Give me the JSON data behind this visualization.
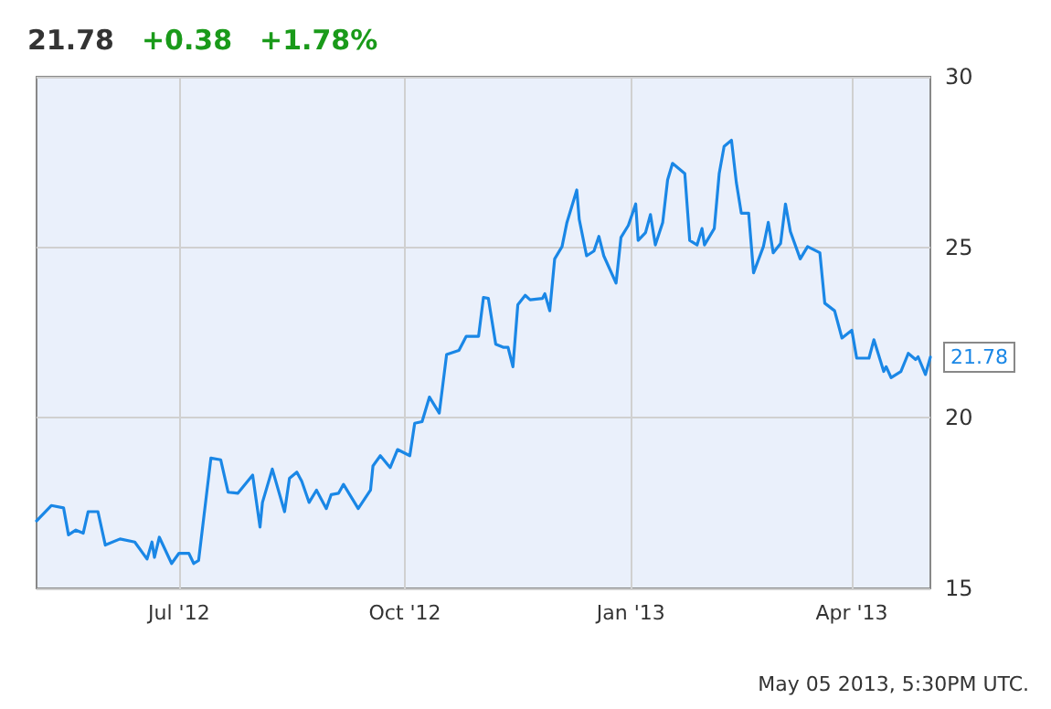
{
  "chart_data": {
    "type": "line",
    "title": "21.78 +0.38 +1.78%",
    "x": [
      "2012-05-04",
      "2012-05-10",
      "2012-05-15",
      "2012-05-17",
      "2012-05-20",
      "2012-05-23",
      "2012-05-25",
      "2012-05-29",
      "2012-06-01",
      "2012-06-07",
      "2012-06-13",
      "2012-06-18",
      "2012-06-20",
      "2012-06-21",
      "2012-06-23",
      "2012-06-28",
      "2012-07-01",
      "2012-07-05",
      "2012-07-07",
      "2012-07-09",
      "2012-07-14",
      "2012-07-18",
      "2012-07-21",
      "2012-07-25",
      "2012-07-31",
      "2012-08-03",
      "2012-08-04",
      "2012-08-08",
      "2012-08-13",
      "2012-08-15",
      "2012-08-18",
      "2012-08-20",
      "2012-08-23",
      "2012-08-26",
      "2012-08-30",
      "2012-09-01",
      "2012-09-04",
      "2012-09-06",
      "2012-09-12",
      "2012-09-17",
      "2012-09-18",
      "2012-09-21",
      "2012-09-25",
      "2012-09-28",
      "2012-10-03",
      "2012-10-05",
      "2012-10-08",
      "2012-10-11",
      "2012-10-15",
      "2012-10-18",
      "2012-10-23",
      "2012-10-26",
      "2012-10-31",
      "2012-11-02",
      "2012-11-04",
      "2012-11-07",
      "2012-11-10",
      "2012-11-12",
      "2012-11-14",
      "2012-11-16",
      "2012-11-19",
      "2012-11-21",
      "2012-11-26",
      "2012-11-27",
      "2012-11-29",
      "2012-12-01",
      "2012-12-04",
      "2012-12-06",
      "2012-12-10",
      "2012-12-11",
      "2012-12-14",
      "2012-12-17",
      "2012-12-19",
      "2012-12-21",
      "2012-12-26",
      "2012-12-28",
      "2012-12-31",
      "2013-01-03",
      "2013-01-04",
      "2013-01-07",
      "2013-01-09",
      "2013-01-11",
      "2013-01-14",
      "2013-01-16",
      "2013-01-18",
      "2013-01-23",
      "2013-01-25",
      "2013-01-28",
      "2013-01-30",
      "2013-01-31",
      "2013-02-04",
      "2013-02-06",
      "2013-02-08",
      "2013-02-11",
      "2013-02-13",
      "2013-02-15",
      "2013-02-18",
      "2013-02-20",
      "2013-02-24",
      "2013-02-26",
      "2013-02-28",
      "2013-03-03",
      "2013-03-05",
      "2013-03-07",
      "2013-03-11",
      "2013-03-14",
      "2013-03-19",
      "2013-03-21",
      "2013-03-25",
      "2013-03-28",
      "2013-04-01",
      "2013-04-03",
      "2013-04-08",
      "2013-04-10",
      "2013-04-14",
      "2013-04-15",
      "2013-04-17",
      "2013-04-21",
      "2013-04-23",
      "2013-04-24",
      "2013-04-27",
      "2013-04-28",
      "2013-05-01",
      "2013-05-03"
    ],
    "series": [
      {
        "color": "#1a87e6",
        "values": [
          16.98,
          17.43,
          17.36,
          16.57,
          16.71,
          16.62,
          17.25,
          17.25,
          16.27,
          16.45,
          16.36,
          15.86,
          16.36,
          15.91,
          16.5,
          15.73,
          16.03,
          16.03,
          15.73,
          15.82,
          18.82,
          18.77,
          17.82,
          17.79,
          18.32,
          16.8,
          17.52,
          18.5,
          17.25,
          18.23,
          18.41,
          18.14,
          17.52,
          17.88,
          17.34,
          17.75,
          17.79,
          18.05,
          17.34,
          17.88,
          18.59,
          18.89,
          18.54,
          19.07,
          18.89,
          19.84,
          19.89,
          20.61,
          20.14,
          21.86,
          21.98,
          22.39,
          22.39,
          23.53,
          23.5,
          22.16,
          22.07,
          22.07,
          21.5,
          23.32,
          23.59,
          23.46,
          23.5,
          23.64,
          23.14,
          24.66,
          25.02,
          25.73,
          26.68,
          25.82,
          24.75,
          24.89,
          25.32,
          24.75,
          23.95,
          25.29,
          25.64,
          26.27,
          25.2,
          25.43,
          25.96,
          25.07,
          25.73,
          26.98,
          27.46,
          27.16,
          25.2,
          25.07,
          25.55,
          25.07,
          25.55,
          27.16,
          27.96,
          28.14,
          26.89,
          26.0,
          26.0,
          24.25,
          25.02,
          25.73,
          24.84,
          25.11,
          26.27,
          25.46,
          24.66,
          25.02,
          24.84,
          23.36,
          23.14,
          22.34,
          22.57,
          21.75,
          21.75,
          22.29,
          21.36,
          21.5,
          21.18,
          21.36,
          21.71,
          21.89,
          21.71,
          21.79,
          21.27,
          21.78
        ]
      }
    ],
    "xlim": [
      "2012-05-04",
      "2013-05-03"
    ],
    "xticks": [
      {
        "value": "2012-07-01",
        "label": "Jul '12"
      },
      {
        "value": "2012-10-01",
        "label": "Oct '12"
      },
      {
        "value": "2013-01-01",
        "label": "Jan '13"
      },
      {
        "value": "2013-04-01",
        "label": "Apr '13"
      }
    ],
    "ylim": [
      15,
      30
    ],
    "yticks": [
      15,
      20,
      25,
      30
    ],
    "grid": true,
    "marker": "none",
    "line_style": "solid",
    "annotations": [
      {
        "text": "21.78",
        "x": "2013-05-03",
        "y": 21.78
      },
      "May 05 2013, 5:30PM UTC."
    ]
  }
}
